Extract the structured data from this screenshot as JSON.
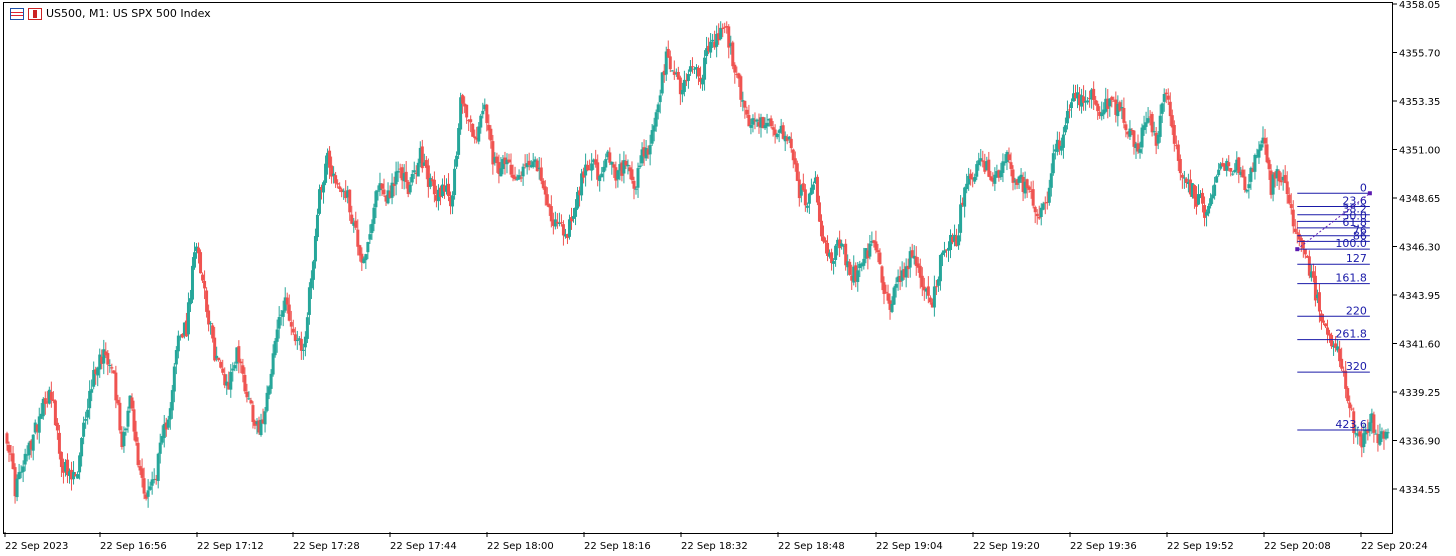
{
  "header": {
    "title": "US500, M1:  US SPX 500 Index",
    "icons": [
      "menu-list-icon",
      "candlestick-icon"
    ]
  },
  "colors": {
    "bull": "#26a69a",
    "bear": "#ef5350",
    "fib": "#1a1aa8",
    "fib_diag": "#5b1ab0",
    "axis": "#000000"
  },
  "chart_data": {
    "type": "candlestick",
    "symbol": "US500",
    "timeframe": "M1",
    "ylim": [
      4333.8,
      4358.05
    ],
    "y_ticks": [
      "4358.05",
      "4355.70",
      "4353.35",
      "4351.00",
      "4348.65",
      "4346.30",
      "4343.95",
      "4341.60",
      "4339.25",
      "4336.90",
      "4334.55"
    ],
    "x_ticks": [
      "22 Sep 2023",
      "22 Sep 16:56",
      "22 Sep 17:12",
      "22 Sep 17:28",
      "22 Sep 17:44",
      "22 Sep 18:00",
      "22 Sep 18:16",
      "22 Sep 18:32",
      "22 Sep 18:48",
      "22 Sep 19:04",
      "22 Sep 19:20",
      "22 Sep 19:36",
      "22 Sep 19:52",
      "22 Sep 20:08",
      "22 Sep 20:24"
    ],
    "grid": false,
    "close_path": [
      [
        0,
        4337.2
      ],
      [
        4,
        4334.6
      ],
      [
        8,
        4335.6
      ],
      [
        14,
        4337.4
      ],
      [
        18,
        4338.9
      ],
      [
        22,
        4339.3
      ],
      [
        26,
        4336.2
      ],
      [
        31,
        4335.0
      ],
      [
        35,
        4335.2
      ],
      [
        39,
        4338.2
      ],
      [
        44,
        4340.5
      ],
      [
        48,
        4341.2
      ],
      [
        52,
        4340.8
      ],
      [
        57,
        4336.8
      ],
      [
        61,
        4339.0
      ],
      [
        65,
        4335.8
      ],
      [
        69,
        4334.3
      ],
      [
        73,
        4335.0
      ],
      [
        77,
        4336.8
      ],
      [
        81,
        4338.8
      ],
      [
        85,
        4341.8
      ],
      [
        89,
        4342.3
      ],
      [
        94,
        4346.7
      ],
      [
        98,
        4344.2
      ],
      [
        102,
        4341.5
      ],
      [
        106,
        4340.3
      ],
      [
        110,
        4339.6
      ],
      [
        114,
        4341.3
      ],
      [
        118,
        4339.6
      ],
      [
        122,
        4338.2
      ],
      [
        126,
        4337.5
      ],
      [
        131,
        4340.5
      ],
      [
        135,
        4342.8
      ],
      [
        139,
        4343.6
      ],
      [
        143,
        4341.7
      ],
      [
        147,
        4341.2
      ],
      [
        151,
        4344.9
      ],
      [
        155,
        4348.9
      ],
      [
        159,
        4350.7
      ],
      [
        163,
        4349.4
      ],
      [
        168,
        4349.0
      ],
      [
        172,
        4347.4
      ],
      [
        176,
        4345.7
      ],
      [
        180,
        4346.5
      ],
      [
        184,
        4349.4
      ],
      [
        188,
        4348.7
      ],
      [
        192,
        4349.5
      ],
      [
        196,
        4349.8
      ],
      [
        200,
        4349.1
      ],
      [
        205,
        4350.7
      ],
      [
        209,
        4349.6
      ],
      [
        213,
        4348.6
      ],
      [
        217,
        4349.4
      ],
      [
        221,
        4348.4
      ],
      [
        225,
        4353.7
      ],
      [
        229,
        4352.3
      ],
      [
        233,
        4351.6
      ],
      [
        237,
        4353.1
      ],
      [
        241,
        4350.3
      ],
      [
        245,
        4350.0
      ],
      [
        249,
        4350.4
      ],
      [
        253,
        4349.7
      ],
      [
        257,
        4350.2
      ],
      [
        261,
        4350.8
      ],
      [
        265,
        4349.3
      ],
      [
        270,
        4347.8
      ],
      [
        274,
        4347.2
      ],
      [
        278,
        4347.0
      ],
      [
        282,
        4348.4
      ],
      [
        286,
        4349.8
      ],
      [
        290,
        4350.7
      ],
      [
        294,
        4349.3
      ],
      [
        298,
        4350.6
      ],
      [
        302,
        4349.6
      ],
      [
        307,
        4350.3
      ],
      [
        311,
        4348.7
      ],
      [
        315,
        4350.6
      ],
      [
        319,
        4351.1
      ],
      [
        323,
        4353.3
      ],
      [
        327,
        4355.3
      ],
      [
        331,
        4354.8
      ],
      [
        335,
        4353.8
      ],
      [
        339,
        4355.2
      ],
      [
        344,
        4354.5
      ],
      [
        348,
        4355.8
      ],
      [
        352,
        4356.3
      ],
      [
        356,
        4357.0
      ],
      [
        360,
        4355.4
      ],
      [
        364,
        4353.6
      ],
      [
        368,
        4352.4
      ],
      [
        372,
        4352.1
      ],
      [
        376,
        4352.6
      ],
      [
        381,
        4351.4
      ],
      [
        385,
        4351.9
      ],
      [
        389,
        4351.2
      ],
      [
        393,
        4349.0
      ],
      [
        397,
        4348.5
      ],
      [
        401,
        4349.5
      ],
      [
        405,
        4346.3
      ],
      [
        409,
        4345.7
      ],
      [
        413,
        4346.5
      ],
      [
        418,
        4345.1
      ],
      [
        422,
        4344.9
      ],
      [
        426,
        4345.9
      ],
      [
        430,
        4346.4
      ],
      [
        434,
        4344.8
      ],
      [
        438,
        4343.3
      ],
      [
        442,
        4344.8
      ],
      [
        446,
        4345.3
      ],
      [
        450,
        4346.0
      ],
      [
        455,
        4344.4
      ],
      [
        459,
        4343.6
      ],
      [
        463,
        4345.5
      ],
      [
        467,
        4346.4
      ],
      [
        471,
        4346.5
      ],
      [
        475,
        4349.3
      ],
      [
        479,
        4349.8
      ],
      [
        483,
        4350.7
      ],
      [
        487,
        4349.9
      ],
      [
        492,
        4349.7
      ],
      [
        496,
        4350.5
      ],
      [
        500,
        4349.5
      ],
      [
        504,
        4349.3
      ],
      [
        508,
        4348.7
      ],
      [
        512,
        4347.9
      ],
      [
        516,
        4348.8
      ],
      [
        520,
        4351.0
      ],
      [
        524,
        4351.7
      ],
      [
        529,
        4353.6
      ],
      [
        533,
        4353.2
      ],
      [
        537,
        4353.8
      ],
      [
        541,
        4352.6
      ],
      [
        545,
        4353.4
      ],
      [
        549,
        4353.0
      ],
      [
        553,
        4352.7
      ],
      [
        557,
        4351.8
      ],
      [
        561,
        4351.2
      ],
      [
        566,
        4352.4
      ],
      [
        570,
        4351.5
      ],
      [
        574,
        4353.8
      ],
      [
        578,
        4352.2
      ],
      [
        582,
        4350.1
      ],
      [
        586,
        4349.4
      ],
      [
        590,
        4348.6
      ],
      [
        594,
        4348.1
      ],
      [
        598,
        4348.7
      ],
      [
        603,
        4350.6
      ],
      [
        607,
        4349.7
      ],
      [
        611,
        4350.3
      ],
      [
        615,
        4349.1
      ],
      [
        619,
        4350.3
      ],
      [
        623,
        4351.5
      ],
      [
        627,
        4349.2
      ],
      [
        631,
        4349.8
      ],
      [
        635,
        4348.9
      ],
      [
        640,
        4346.5
      ],
      [
        644,
        4345.7
      ],
      [
        648,
        4344.6
      ],
      [
        652,
        4342.5
      ],
      [
        656,
        4341.7
      ],
      [
        660,
        4341.2
      ],
      [
        664,
        4339.5
      ],
      [
        668,
        4337.6
      ],
      [
        672,
        4336.6
      ],
      [
        677,
        4337.8
      ],
      [
        681,
        4337.0
      ],
      [
        685,
        4337.3
      ]
    ],
    "fibonacci_levels": [
      {
        "label": "0",
        "price": 4348.88
      },
      {
        "label": "23.6",
        "price": 4348.24
      },
      {
        "label": "38.2",
        "price": 4347.84
      },
      {
        "label": "50.0",
        "price": 4347.52
      },
      {
        "label": "61.8",
        "price": 4347.2
      },
      {
        "label": "76",
        "price": 4346.82
      },
      {
        "label": "86",
        "price": 4346.55
      },
      {
        "label": "100.0",
        "price": 4346.17
      },
      {
        "label": "127",
        "price": 4345.44
      },
      {
        "label": "161.8",
        "price": 4344.5
      },
      {
        "label": "220",
        "price": 4342.92
      },
      {
        "label": "261.8",
        "price": 4341.79
      },
      {
        "label": "320",
        "price": 4340.21
      },
      {
        "label": "423.6",
        "price": 4337.41
      }
    ],
    "fib_start_index": 640,
    "fib_end_index": 676
  }
}
